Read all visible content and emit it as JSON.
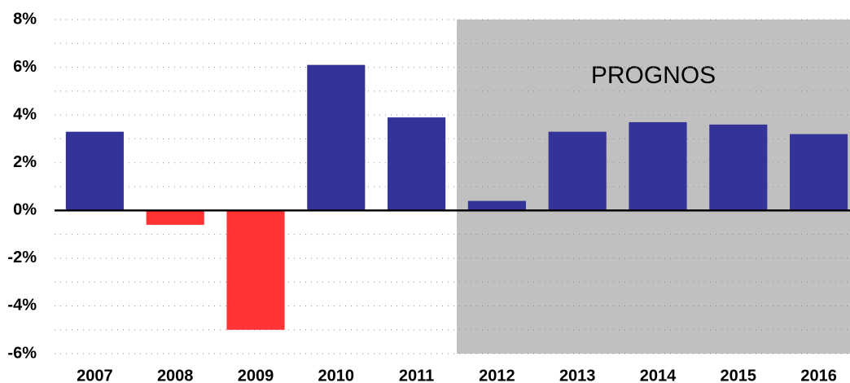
{
  "chart_data": {
    "type": "bar",
    "categories": [
      "2007",
      "2008",
      "2009",
      "2010",
      "2011",
      "2012",
      "2013",
      "2014",
      "2015",
      "2016"
    ],
    "values": [
      3.3,
      -0.6,
      -5.0,
      6.1,
      3.9,
      0.4,
      3.3,
      3.7,
      3.6,
      3.2
    ],
    "color": "#333399",
    "negative_color": "#ff3333",
    "ylim": [
      -6,
      8
    ],
    "yticks": [
      {
        "value": -6,
        "label": "-6%"
      },
      {
        "value": -4,
        "label": "-4%"
      },
      {
        "value": -2,
        "label": "-2%"
      },
      {
        "value": 0,
        "label": "0%"
      },
      {
        "value": 2,
        "label": "2%"
      },
      {
        "value": 4,
        "label": "4%"
      },
      {
        "value": 6,
        "label": "6%"
      },
      {
        "value": 8,
        "label": "8%"
      }
    ],
    "minor_yticks": [
      -5,
      -3,
      -1,
      1,
      3,
      5,
      7
    ],
    "grid": true,
    "annotation": {
      "text": "PROGNOS",
      "start": "2012",
      "color": "#c0c0c0"
    }
  }
}
